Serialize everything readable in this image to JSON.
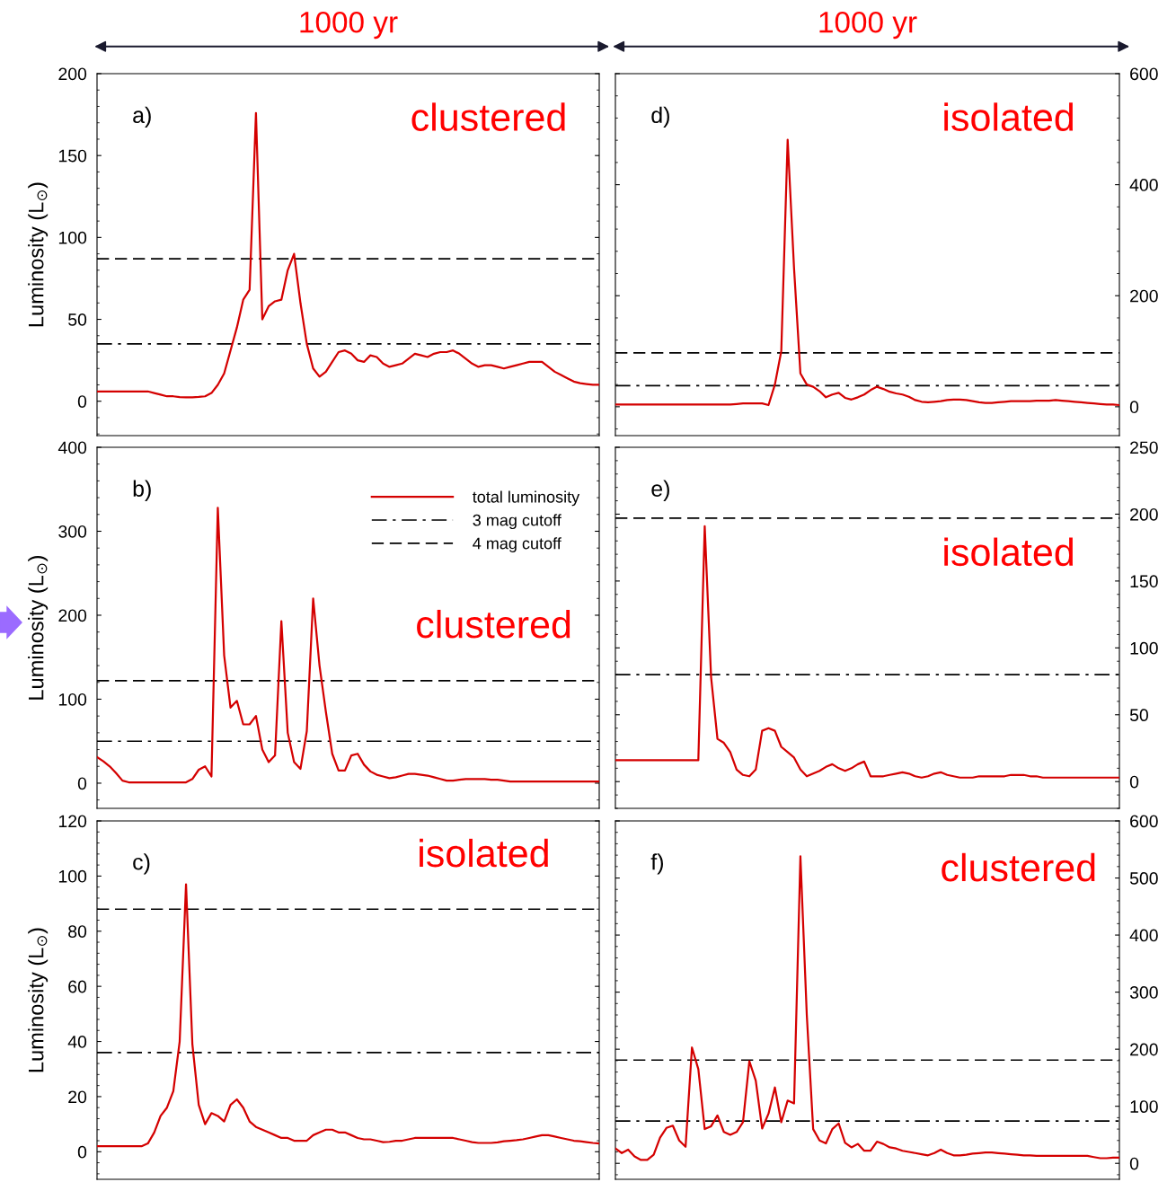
{
  "chart_data": [
    {
      "type": "line",
      "title": "1000 yr",
      "ylabel": "Luminosity (L$_{⊙}$)",
      "annotations": [
        "a)",
        "clustered"
      ],
      "categories": [
        null,
        null,
        null,
        null,
        null,
        null,
        null,
        null,
        null,
        null,
        null,
        null,
        null,
        null,
        null,
        null,
        null,
        null,
        null,
        null,
        null,
        null,
        null,
        null,
        null,
        null,
        null,
        null,
        null,
        null,
        null,
        null,
        null,
        null,
        null,
        null,
        null,
        null,
        null,
        null,
        null,
        null,
        null,
        null,
        null,
        null,
        null,
        null,
        null,
        null,
        null,
        null,
        null,
        null,
        null,
        null,
        null,
        null,
        null,
        null,
        null,
        null,
        null,
        null,
        null,
        null,
        null,
        null,
        null,
        null,
        null,
        null,
        null,
        null,
        null,
        null,
        null,
        null,
        null,
        null
      ],
      "ylim": [
        -21,
        200
      ],
      "yticks": [
        0,
        50,
        100,
        150,
        200
      ],
      "series": [
        {
          "color": "#d40000",
          "values": [
            6,
            6,
            6,
            6,
            6,
            6,
            6,
            6,
            6,
            5,
            4,
            3,
            3,
            2.5,
            2.4,
            2.4,
            2.6,
            3,
            5,
            10,
            17,
            31,
            45,
            62,
            68,
            176,
            50,
            58,
            61,
            62,
            80,
            90,
            60,
            35,
            20,
            15,
            18,
            24,
            30,
            31,
            29,
            25,
            24,
            28,
            27,
            23,
            21,
            22,
            23,
            26,
            29,
            28,
            27,
            29,
            30,
            30,
            31,
            29,
            26,
            23,
            21,
            22,
            22,
            21,
            20,
            21,
            22,
            23,
            24,
            24,
            24,
            21,
            18,
            16,
            14,
            12,
            11,
            10.5,
            10,
            10
          ]
        }
      ],
      "ref_lines": [
        {
          "axis": "y",
          "value": 87,
          "color": "#000000",
          "line_style": "dashed"
        },
        {
          "axis": "y",
          "value": 35,
          "color": "#000000",
          "line_style": "dashdot"
        }
      ]
    },
    {
      "type": "line",
      "title": "1000 yr",
      "annotations": [
        "d)",
        "isolated"
      ],
      "categories": [
        null,
        null,
        null,
        null,
        null,
        null,
        null,
        null,
        null,
        null,
        null,
        null,
        null,
        null,
        null,
        null,
        null,
        null,
        null,
        null,
        null,
        null,
        null,
        null,
        null,
        null,
        null,
        null,
        null,
        null,
        null,
        null,
        null,
        null,
        null,
        null,
        null,
        null,
        null,
        null,
        null,
        null,
        null,
        null,
        null,
        null,
        null,
        null,
        null,
        null,
        null,
        null,
        null,
        null,
        null,
        null,
        null,
        null,
        null,
        null,
        null,
        null,
        null,
        null,
        null,
        null,
        null,
        null,
        null,
        null,
        null,
        null,
        null,
        null,
        null,
        null,
        null,
        null,
        null,
        null
      ],
      "ylim": [
        -52,
        600
      ],
      "yticks": [
        0,
        200,
        400,
        600
      ],
      "series": [
        {
          "color": "#d40000",
          "values": [
            4,
            4,
            4,
            4,
            4,
            4,
            4,
            4,
            4,
            4,
            4,
            4,
            4,
            4,
            4,
            4,
            4,
            4,
            4,
            5,
            6,
            6,
            6,
            6,
            3,
            40,
            100,
            481,
            250,
            60,
            40,
            36,
            28,
            17,
            22,
            25,
            16,
            13,
            17,
            22,
            30,
            36,
            32,
            27,
            24,
            22,
            18,
            12,
            9,
            8,
            9,
            10,
            12,
            13,
            13,
            12,
            10,
            8,
            7,
            7,
            8,
            9,
            10,
            10,
            10,
            10,
            11,
            11,
            11,
            12,
            11,
            10,
            9,
            8,
            7,
            6,
            5,
            4,
            4,
            3
          ]
        }
      ],
      "ref_lines": [
        {
          "axis": "y",
          "value": 97,
          "color": "#000000",
          "line_style": "dashed"
        },
        {
          "axis": "y",
          "value": 38,
          "color": "#000000",
          "line_style": "dashdot"
        }
      ]
    },
    {
      "type": "line",
      "ylabel": "Luminosity (L$_{⊙}$)",
      "annotations": [
        "b)",
        "clustered"
      ],
      "legend": "top right",
      "categories": [
        null,
        null,
        null,
        null,
        null,
        null,
        null,
        null,
        null,
        null,
        null,
        null,
        null,
        null,
        null,
        null,
        null,
        null,
        null,
        null,
        null,
        null,
        null,
        null,
        null,
        null,
        null,
        null,
        null,
        null,
        null,
        null,
        null,
        null,
        null,
        null,
        null,
        null,
        null,
        null,
        null,
        null,
        null,
        null,
        null,
        null,
        null,
        null,
        null,
        null,
        null,
        null,
        null,
        null,
        null,
        null,
        null,
        null,
        null,
        null,
        null,
        null,
        null,
        null,
        null,
        null,
        null,
        null,
        null,
        null,
        null,
        null,
        null,
        null,
        null,
        null,
        null,
        null,
        null,
        null
      ],
      "ylim": [
        -30,
        400
      ],
      "yticks": [
        0,
        100,
        200,
        300,
        400
      ],
      "series": [
        {
          "name": "total luminosity",
          "color": "#d40000",
          "values": [
            31,
            26,
            20,
            12,
            3,
            1,
            1,
            1,
            1,
            1,
            1,
            1,
            1,
            1,
            1,
            5,
            16,
            20,
            8,
            328,
            152,
            90,
            98,
            70,
            70,
            80,
            40,
            25,
            33,
            193,
            60,
            25,
            17,
            62,
            220,
            140,
            85,
            35,
            15,
            15,
            33,
            35,
            22,
            14,
            10,
            8,
            6,
            7,
            9,
            11,
            11,
            10,
            9,
            7,
            5,
            3,
            3,
            4,
            5,
            5,
            5,
            5,
            4,
            4,
            3,
            2,
            2,
            2,
            2,
            2,
            2,
            2,
            2,
            2,
            2,
            2,
            2,
            2,
            2,
            2
          ]
        }
      ],
      "ref_lines": [
        {
          "axis": "y",
          "value": 50,
          "label": "3 mag cutoff",
          "color": "#000000",
          "line_style": "dashdot"
        },
        {
          "axis": "y",
          "value": 122,
          "label": "4 mag cutoff",
          "color": "#000000",
          "line_style": "dashed"
        }
      ]
    },
    {
      "type": "line",
      "annotations": [
        "e)",
        "isolated"
      ],
      "categories": [
        null,
        null,
        null,
        null,
        null,
        null,
        null,
        null,
        null,
        null,
        null,
        null,
        null,
        null,
        null,
        null,
        null,
        null,
        null,
        null,
        null,
        null,
        null,
        null,
        null,
        null,
        null,
        null,
        null,
        null,
        null,
        null,
        null,
        null,
        null,
        null,
        null,
        null,
        null,
        null,
        null,
        null,
        null,
        null,
        null,
        null,
        null,
        null,
        null,
        null,
        null,
        null,
        null,
        null,
        null,
        null,
        null,
        null,
        null,
        null,
        null,
        null,
        null,
        null,
        null,
        null,
        null,
        null,
        null,
        null,
        null,
        null,
        null,
        null,
        null,
        null,
        null,
        null,
        null,
        null
      ],
      "ylim": [
        -20,
        250
      ],
      "yticks": [
        0,
        50,
        100,
        150,
        200,
        250
      ],
      "series": [
        {
          "color": "#d40000",
          "values": [
            16,
            16,
            16,
            16,
            16,
            16,
            16,
            16,
            16,
            16,
            16,
            16,
            16,
            16,
            191,
            78,
            32,
            29,
            22,
            9,
            5,
            4,
            9,
            38,
            40,
            38,
            26,
            22,
            18,
            9,
            4,
            6,
            8,
            11,
            13,
            10,
            8,
            10,
            13,
            15,
            4,
            4,
            4,
            5,
            6,
            7,
            6,
            4,
            3,
            4,
            6,
            7,
            5,
            4,
            3,
            3,
            3,
            4,
            4,
            4,
            4,
            4,
            5,
            5,
            5,
            4,
            4,
            3,
            3,
            3,
            3,
            3,
            3,
            3,
            3,
            3,
            3,
            3,
            3,
            3
          ]
        }
      ],
      "ref_lines": [
        {
          "axis": "y",
          "value": 197,
          "color": "#000000",
          "line_style": "dashed"
        },
        {
          "axis": "y",
          "value": 80,
          "color": "#000000",
          "line_style": "dashdot"
        }
      ]
    },
    {
      "type": "line",
      "ylabel": "Luminosity (L$_{⊙}$)",
      "annotations": [
        "c)",
        "isolated"
      ],
      "categories": [
        null,
        null,
        null,
        null,
        null,
        null,
        null,
        null,
        null,
        null,
        null,
        null,
        null,
        null,
        null,
        null,
        null,
        null,
        null,
        null,
        null,
        null,
        null,
        null,
        null,
        null,
        null,
        null,
        null,
        null,
        null,
        null,
        null,
        null,
        null,
        null,
        null,
        null,
        null,
        null,
        null,
        null,
        null,
        null,
        null,
        null,
        null,
        null,
        null,
        null,
        null,
        null,
        null,
        null,
        null,
        null,
        null,
        null,
        null,
        null,
        null,
        null,
        null,
        null,
        null,
        null,
        null,
        null,
        null,
        null,
        null,
        null,
        null,
        null,
        null,
        null,
        null,
        null,
        null,
        null
      ],
      "ylim": [
        -10,
        120
      ],
      "yticks": [
        0,
        20,
        40,
        60,
        80,
        100,
        120
      ],
      "series": [
        {
          "color": "#d40000",
          "values": [
            2,
            2,
            2,
            2,
            2,
            2,
            2,
            2,
            3,
            7,
            13,
            16,
            22,
            40,
            97,
            39,
            17,
            10,
            14,
            13,
            11,
            17,
            19,
            16,
            11,
            9,
            8,
            7,
            6,
            5,
            5,
            4,
            4,
            4,
            6,
            7,
            8,
            8,
            7,
            7,
            6,
            5,
            4.5,
            4.5,
            4,
            3.5,
            3.6,
            4,
            4,
            4.5,
            5,
            5,
            5,
            5,
            5,
            5,
            5,
            4.5,
            4,
            3.5,
            3.2,
            3.2,
            3.2,
            3.4,
            3.8,
            4,
            4.2,
            4.5,
            5,
            5.5,
            6,
            6,
            5.5,
            5,
            4.5,
            4,
            3.8,
            3.5,
            3.2,
            3
          ]
        }
      ],
      "ref_lines": [
        {
          "axis": "y",
          "value": 88,
          "color": "#000000",
          "line_style": "dashed"
        },
        {
          "axis": "y",
          "value": 36,
          "color": "#000000",
          "line_style": "dashdot"
        }
      ]
    },
    {
      "type": "line",
      "annotations": [
        "f)",
        "clustered"
      ],
      "categories": [
        null,
        null,
        null,
        null,
        null,
        null,
        null,
        null,
        null,
        null,
        null,
        null,
        null,
        null,
        null,
        null,
        null,
        null,
        null,
        null,
        null,
        null,
        null,
        null,
        null,
        null,
        null,
        null,
        null,
        null,
        null,
        null,
        null,
        null,
        null,
        null,
        null,
        null,
        null,
        null,
        null,
        null,
        null,
        null,
        null,
        null,
        null,
        null,
        null,
        null,
        null,
        null,
        null,
        null,
        null,
        null,
        null,
        null,
        null,
        null,
        null,
        null,
        null,
        null,
        null,
        null,
        null,
        null,
        null,
        null,
        null,
        null,
        null,
        null,
        null,
        null,
        null,
        null,
        null,
        null
      ],
      "ylim": [
        -28,
        600
      ],
      "yticks": [
        0,
        100,
        200,
        300,
        400,
        500,
        600
      ],
      "series": [
        {
          "color": "#d40000",
          "values": [
            26,
            18,
            24,
            12,
            6,
            6,
            15,
            45,
            62,
            66,
            40,
            29,
            203,
            165,
            60,
            65,
            84,
            55,
            50,
            55,
            72,
            179,
            145,
            61,
            87,
            133,
            72,
            110,
            105,
            538,
            260,
            60,
            40,
            35,
            60,
            70,
            36,
            28,
            34,
            22,
            22,
            38,
            34,
            28,
            26,
            22,
            20,
            18,
            16,
            14,
            18,
            24,
            18,
            14,
            14,
            15,
            17,
            18,
            19,
            19,
            18,
            17,
            16,
            15,
            14,
            14,
            13,
            13,
            13,
            13,
            13,
            13,
            13,
            13,
            13,
            11,
            9,
            9,
            10,
            10
          ]
        }
      ],
      "ref_lines": [
        {
          "axis": "y",
          "value": 181,
          "color": "#000000",
          "line_style": "dashed"
        },
        {
          "axis": "y",
          "value": 74,
          "color": "#000000",
          "line_style": "dashdot"
        }
      ]
    }
  ]
}
